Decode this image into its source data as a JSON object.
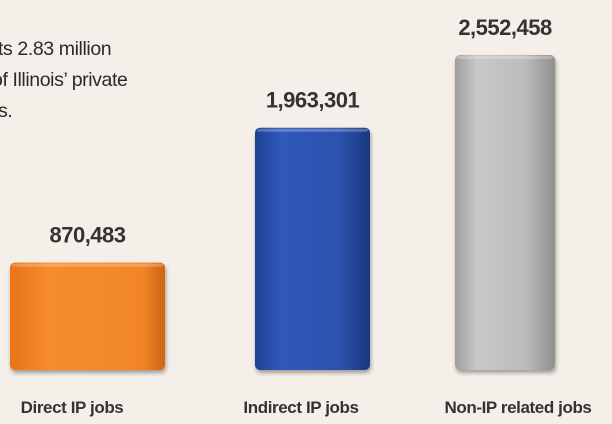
{
  "intro_text": [
    "ts 2.83 million",
    "of Illinois’ private",
    "s."
  ],
  "chart_data": {
    "type": "bar",
    "categories": [
      "Direct IP jobs",
      "Indirect IP jobs",
      "Non-IP related jobs"
    ],
    "values": [
      870483,
      1963301,
      2552458
    ],
    "value_labels": [
      "870,483",
      "1,963,301",
      "2,552,458"
    ],
    "colors": [
      "#f28a2e",
      "#2f55b3",
      "#b9b9b9"
    ],
    "grid": false,
    "legend": "none"
  }
}
